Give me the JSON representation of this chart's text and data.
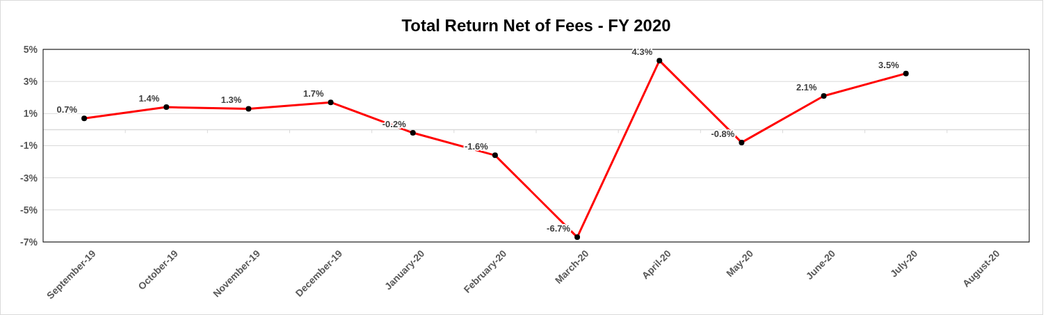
{
  "chart_data": {
    "type": "line",
    "title": "Total Return Net of Fees - FY 2020",
    "categories": [
      "September-19",
      "October-19",
      "November-19",
      "December-19",
      "January-20",
      "February-20",
      "March-20",
      "April-20",
      "May-20",
      "June-20",
      "July-20",
      "August-20"
    ],
    "series": [
      {
        "color": "#ff0000",
        "values": [
          0.7,
          1.4,
          1.3,
          1.7,
          -0.2,
          -1.6,
          -6.7,
          4.3,
          -0.8,
          2.1,
          3.5,
          null
        ],
        "value_labels": [
          "0.7%",
          "1.4%",
          "1.3%",
          "1.7%",
          "-0.2%",
          "-1.6%",
          "-6.7%",
          "4.3%",
          "-0.8%",
          "2.1%",
          "3.5%",
          null
        ]
      }
    ],
    "ylim": [
      -7,
      5
    ],
    "yticks": [
      {
        "value": -7,
        "label": "-7%"
      },
      {
        "value": -5,
        "label": "-5%"
      },
      {
        "value": -3,
        "label": "-3%"
      },
      {
        "value": -1,
        "label": "-1%"
      },
      {
        "value": 1,
        "label": "1%"
      },
      {
        "value": 3,
        "label": "3%"
      },
      {
        "value": 5,
        "label": "5%"
      }
    ],
    "grid": "y",
    "marker": "circle",
    "line_style": "solid"
  }
}
